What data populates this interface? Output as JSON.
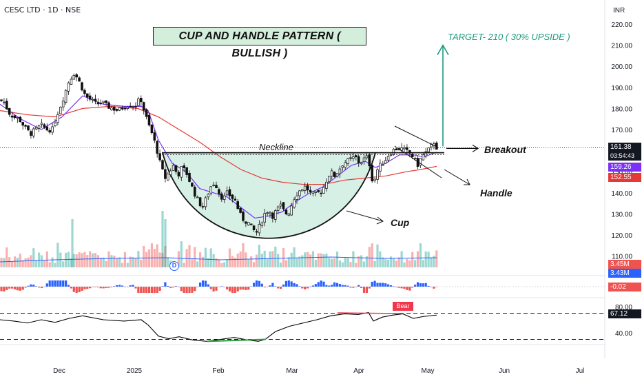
{
  "header": {
    "ticker": "CESC LTD · 1D · NSE",
    "currency": "INR"
  },
  "annotations": {
    "title": "CUP AND HANDLE PATTERN ( BULLISH )",
    "target": "TARGET- 210 ( 30% UPSIDE )",
    "neckline": "Neckline",
    "breakout": "Breakout",
    "handle": "Handle",
    "cup": "Cup",
    "bear": "Bear",
    "dividend": "D"
  },
  "badges": {
    "price": "161.38",
    "countdown": "03:54:43",
    "ema_fast": "159.26",
    "ema_slow": "152.55",
    "volume": "3.45M",
    "volume_avg": "3.43M",
    "macd": "-0.02",
    "rsi": "67.12"
  },
  "colors": {
    "up": "#26a69a",
    "down": "#ef5350",
    "ema_fast": "#7b2ff7",
    "ema_slow": "#e53935",
    "cup_fill": "#d6f0e6",
    "target": "#1d9a80",
    "macd_up": "#2962ff",
    "macd_down": "#ef5350",
    "rsi_line": "#000000"
  },
  "chart_data": {
    "type": "candlestick",
    "y_axis": {
      "ticks": [
        220,
        210,
        200,
        190,
        180,
        170,
        160,
        150,
        140,
        130,
        120,
        110
      ],
      "tick_labels": [
        "220.00",
        "210.00",
        "200.00",
        "190.00",
        "180.00",
        "170.00",
        "160.00",
        "150.00",
        "140.00",
        "130.00",
        "120.00",
        "110.00"
      ],
      "ylim": [
        108,
        224
      ]
    },
    "x_axis": {
      "tick_labels": [
        "Dec",
        "2025",
        "Feb",
        "Mar",
        "Apr",
        "May",
        "Jun",
        "Jul"
      ]
    },
    "price_path": [
      [
        0,
        184
      ],
      [
        6,
        183
      ],
      [
        13,
        178
      ],
      [
        20,
        176
      ],
      [
        28,
        175
      ],
      [
        36,
        171
      ],
      [
        44,
        168
      ],
      [
        52,
        170
      ],
      [
        60,
        172
      ],
      [
        68,
        170
      ],
      [
        76,
        170
      ],
      [
        84,
        178
      ],
      [
        92,
        185
      ],
      [
        100,
        193
      ],
      [
        108,
        197
      ],
      [
        116,
        192
      ],
      [
        124,
        186
      ],
      [
        132,
        184
      ],
      [
        140,
        182
      ],
      [
        148,
        183
      ],
      [
        156,
        181
      ],
      [
        164,
        180
      ],
      [
        172,
        179
      ],
      [
        180,
        181
      ],
      [
        188,
        182
      ],
      [
        196,
        181
      ],
      [
        204,
        185
      ],
      [
        210,
        178
      ],
      [
        216,
        172
      ],
      [
        222,
        167
      ],
      [
        228,
        160
      ],
      [
        234,
        152
      ],
      [
        240,
        147
      ],
      [
        246,
        150
      ],
      [
        252,
        153
      ],
      [
        258,
        148
      ],
      [
        264,
        152
      ],
      [
        270,
        150
      ],
      [
        276,
        145
      ],
      [
        282,
        140
      ],
      [
        288,
        136
      ],
      [
        294,
        133
      ],
      [
        300,
        138
      ],
      [
        306,
        143
      ],
      [
        312,
        145
      ],
      [
        318,
        140
      ],
      [
        324,
        137
      ],
      [
        330,
        140
      ],
      [
        336,
        138
      ],
      [
        342,
        136
      ],
      [
        348,
        130
      ],
      [
        354,
        127
      ],
      [
        360,
        126
      ],
      [
        366,
        123
      ],
      [
        372,
        121
      ],
      [
        378,
        125
      ],
      [
        384,
        130
      ],
      [
        390,
        132
      ],
      [
        396,
        129
      ],
      [
        402,
        132
      ],
      [
        408,
        134
      ],
      [
        414,
        130
      ],
      [
        420,
        131
      ],
      [
        426,
        137
      ],
      [
        432,
        140
      ],
      [
        438,
        142
      ],
      [
        444,
        143
      ],
      [
        450,
        140
      ],
      [
        456,
        139
      ],
      [
        462,
        140
      ],
      [
        468,
        141
      ],
      [
        474,
        146
      ],
      [
        480,
        150
      ],
      [
        486,
        148
      ],
      [
        492,
        151
      ],
      [
        498,
        154
      ],
      [
        504,
        155
      ],
      [
        510,
        156
      ],
      [
        516,
        157
      ],
      [
        522,
        154
      ],
      [
        528,
        156
      ],
      [
        534,
        157
      ],
      [
        538,
        151
      ],
      [
        542,
        143
      ],
      [
        546,
        150
      ],
      [
        552,
        153
      ],
      [
        558,
        155
      ],
      [
        564,
        158
      ],
      [
        570,
        160
      ],
      [
        576,
        161
      ],
      [
        582,
        161
      ],
      [
        588,
        160
      ],
      [
        594,
        159
      ],
      [
        600,
        157
      ],
      [
        606,
        153
      ],
      [
        612,
        157
      ],
      [
        618,
        159
      ],
      [
        624,
        161
      ],
      [
        630,
        164
      ],
      [
        634,
        161.38
      ]
    ],
    "ema_fast_path": [
      [
        0,
        182
      ],
      [
        30,
        175
      ],
      [
        60,
        170
      ],
      [
        90,
        176
      ],
      [
        120,
        186
      ],
      [
        150,
        182
      ],
      [
        180,
        181
      ],
      [
        205,
        181
      ],
      [
        215,
        179
      ],
      [
        230,
        165
      ],
      [
        250,
        154
      ],
      [
        270,
        150
      ],
      [
        290,
        142
      ],
      [
        310,
        140
      ],
      [
        330,
        138
      ],
      [
        350,
        133
      ],
      [
        370,
        128
      ],
      [
        390,
        129
      ],
      [
        410,
        131
      ],
      [
        430,
        136
      ],
      [
        450,
        140
      ],
      [
        470,
        143
      ],
      [
        490,
        148
      ],
      [
        510,
        153
      ],
      [
        530,
        155
      ],
      [
        545,
        152
      ],
      [
        560,
        154
      ],
      [
        580,
        158
      ],
      [
        600,
        158
      ],
      [
        615,
        157
      ],
      [
        634,
        159.26
      ]
    ],
    "ema_slow_path": [
      [
        0,
        179
      ],
      [
        40,
        177
      ],
      [
        80,
        176
      ],
      [
        120,
        180
      ],
      [
        160,
        181
      ],
      [
        200,
        180
      ],
      [
        230,
        176
      ],
      [
        260,
        170
      ],
      [
        290,
        164
      ],
      [
        320,
        157
      ],
      [
        350,
        151
      ],
      [
        380,
        147
      ],
      [
        410,
        145
      ],
      [
        440,
        144
      ],
      [
        470,
        144
      ],
      [
        500,
        146
      ],
      [
        530,
        147
      ],
      [
        560,
        148
      ],
      [
        590,
        150
      ],
      [
        610,
        151
      ],
      [
        634,
        152.55
      ]
    ],
    "pattern": {
      "neckline_price": 159,
      "neckline_x": [
        235,
        645
      ],
      "cup_bottom_price": 118,
      "target_price": 210,
      "last_price": 161.38
    },
    "volume": {
      "latest": "3.45M",
      "average": "3.43M"
    },
    "macd_histogram": {
      "latest": -0.02
    },
    "rsi": {
      "levels": [
        80,
        70,
        40,
        30
      ],
      "level_labels": [
        "80.00",
        "40.00"
      ],
      "latest": 67.12,
      "path": [
        [
          0,
          60
        ],
        [
          20,
          58
        ],
        [
          40,
          55
        ],
        [
          60,
          60
        ],
        [
          80,
          56
        ],
        [
          100,
          62
        ],
        [
          120,
          66
        ],
        [
          150,
          60
        ],
        [
          180,
          58
        ],
        [
          205,
          60
        ],
        [
          215,
          52
        ],
        [
          230,
          35
        ],
        [
          245,
          31
        ],
        [
          260,
          34
        ],
        [
          280,
          29
        ],
        [
          300,
          27
        ],
        [
          320,
          30
        ],
        [
          340,
          33
        ],
        [
          360,
          29
        ],
        [
          375,
          27
        ],
        [
          385,
          30
        ],
        [
          400,
          42
        ],
        [
          420,
          50
        ],
        [
          440,
          55
        ],
        [
          460,
          60
        ],
        [
          480,
          66
        ],
        [
          500,
          69
        ],
        [
          520,
          68
        ],
        [
          535,
          71
        ],
        [
          542,
          58
        ],
        [
          555,
          64
        ],
        [
          570,
          67
        ],
        [
          585,
          69
        ],
        [
          600,
          62
        ],
        [
          615,
          65
        ],
        [
          634,
          67.12
        ]
      ]
    }
  }
}
